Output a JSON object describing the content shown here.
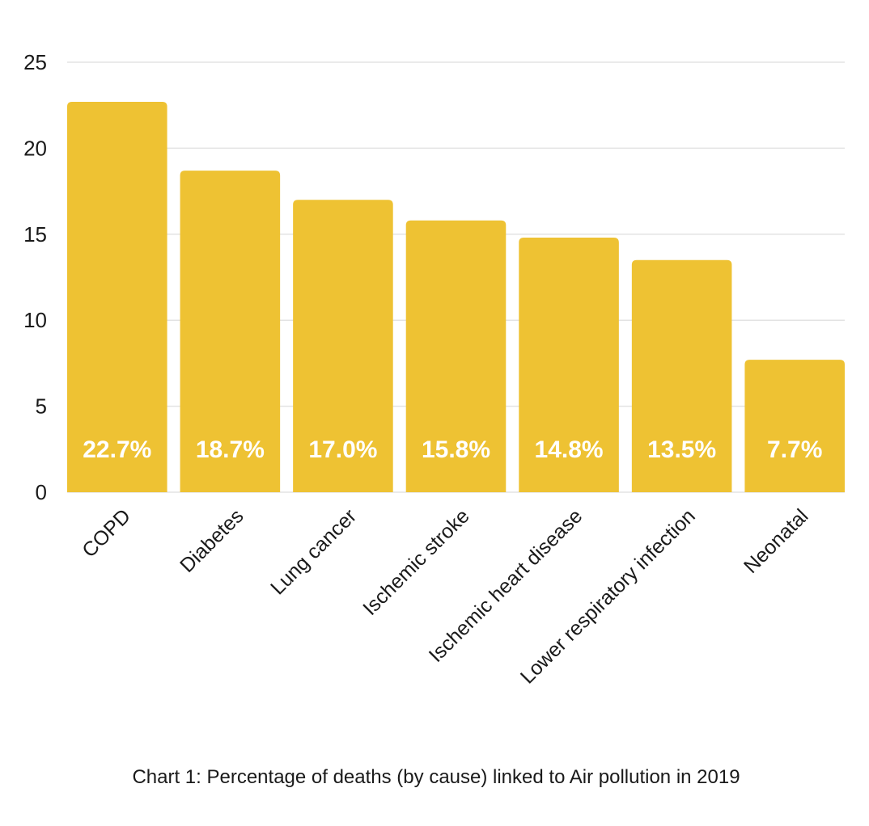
{
  "chart_data": {
    "type": "bar",
    "title": "",
    "caption": "Chart 1: Percentage of deaths (by cause) linked to Air pollution in 2019",
    "xlabel": "",
    "ylabel": "",
    "categories": [
      "COPD",
      "Diabetes",
      "Lung cancer",
      "Ischemic stroke",
      "Ischemic heart disease",
      "Lower respiratory infection",
      "Neonatal"
    ],
    "values": [
      22.7,
      18.7,
      17.0,
      15.8,
      14.8,
      13.5,
      7.7
    ],
    "data_labels": [
      "22.7%",
      "18.7%",
      "17.0%",
      "15.8%",
      "14.8%",
      "13.5%",
      "7.7%"
    ],
    "ylim": [
      0,
      25
    ],
    "yticks": [
      0,
      5,
      10,
      15,
      20,
      25
    ],
    "ytick_labels": [
      "0",
      "5",
      "10",
      "15",
      "20",
      "25"
    ],
    "grid": true,
    "legend": "none",
    "colors": {
      "bar": "#EEC233",
      "grid": "#e3e3e3",
      "data_label": "#ffffff",
      "text": "#1a1a1a"
    }
  }
}
